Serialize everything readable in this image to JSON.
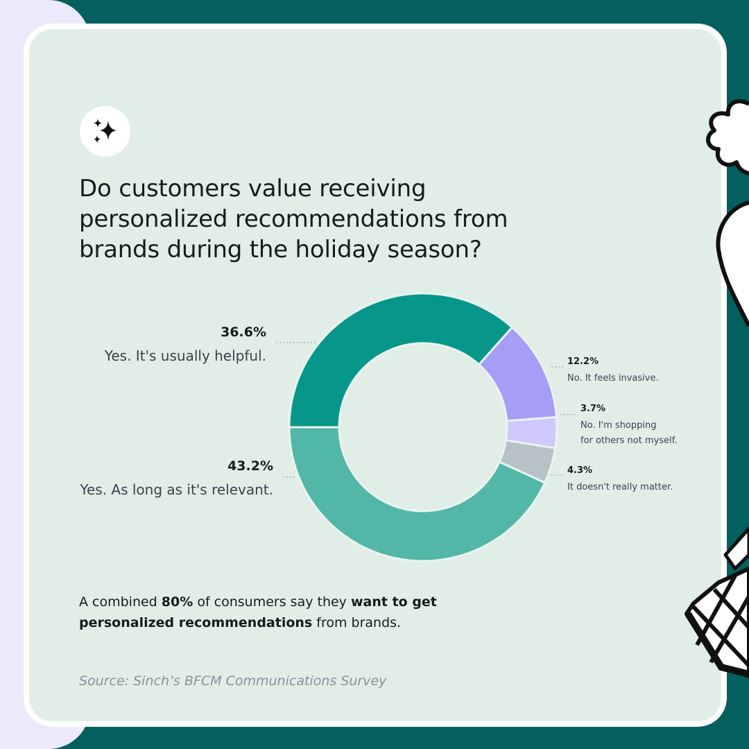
{
  "title": "Do customers value receiving personalized recommendations from brands during the holiday season?",
  "icons": {
    "badge": "sparkles-icon"
  },
  "chart_data": {
    "type": "pie",
    "style": "donut",
    "unit": "%",
    "slices": [
      {
        "pct_label": "36.6%",
        "value": 36.6,
        "label": "Yes. It's usually helpful.",
        "color": "#07968a"
      },
      {
        "pct_label": "12.2%",
        "value": 12.2,
        "label": "No. It feels invasive.",
        "color": "#a69df7"
      },
      {
        "pct_label": "3.7%",
        "value": 3.7,
        "label_line1": "No. I'm shopping",
        "label_line2": "for others not myself.",
        "color": "#cfc8fb"
      },
      {
        "pct_label": "4.3%",
        "value": 4.3,
        "label": "It doesn't really matter.",
        "color": "#b7c2c6"
      },
      {
        "pct_label": "43.2%",
        "value": 43.2,
        "label": "Yes. As long as it's relevant.",
        "color": "#52b7a6"
      }
    ]
  },
  "footnote": {
    "part1": "A combined ",
    "bold1": "80%",
    "part2": " of consumers say they ",
    "bold2": "want to get personalized recommendations",
    "part3": " from brands."
  },
  "source": "Source: Sinch’s BFCM Communications Survey",
  "colors": {
    "background": "#04605f",
    "card": "#e1eee8",
    "side_strip": "#ece9fb"
  }
}
